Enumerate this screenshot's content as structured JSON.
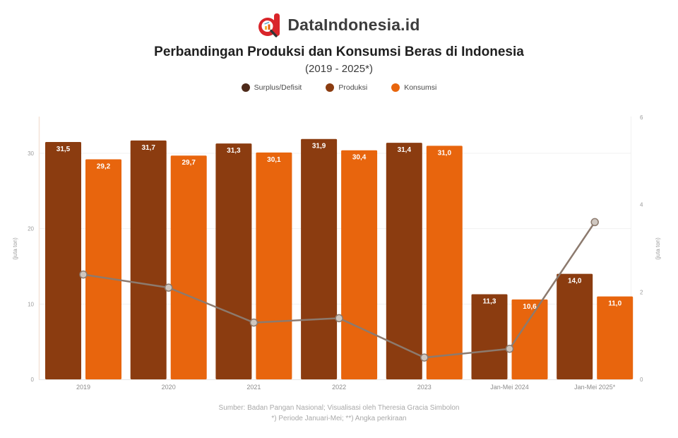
{
  "header": {
    "brand": "DataIndonesia.id",
    "title": "Perbandingan Produksi dan Konsumsi Beras di Indonesia",
    "subtitle": "(2019 - 2025*)"
  },
  "legend": [
    {
      "label": "Surplus/Defisit",
      "color": "#4e2a1a"
    },
    {
      "label": "Produksi",
      "color": "#8b3c10"
    },
    {
      "label": "Konsumsi",
      "color": "#e8650d"
    }
  ],
  "chart_data": {
    "type": "bar",
    "title": "Perbandingan Produksi dan Konsumsi Beras di Indonesia",
    "subtitle": "(2019 - 2025*)",
    "categories": [
      "2019",
      "2020",
      "2021",
      "2022",
      "2023",
      "Jan-Mei 2024",
      "Jan-Mei 2025*"
    ],
    "series": [
      {
        "name": "Produksi",
        "kind": "bar",
        "axis": "left",
        "color": "#8b3c10",
        "values": [
          31.5,
          31.7,
          31.3,
          31.9,
          31.4,
          11.3,
          14.0
        ],
        "labels": [
          "31,5",
          "31,7",
          "31,3",
          "31,9",
          "31,4",
          "11,3",
          "14,0"
        ]
      },
      {
        "name": "Konsumsi",
        "kind": "bar",
        "axis": "left",
        "color": "#e8650d",
        "values": [
          29.2,
          29.7,
          30.1,
          30.4,
          31.0,
          10.6,
          11.0
        ],
        "labels": [
          "29,2",
          "29,7",
          "30,1",
          "30,4",
          "31,0",
          "10,6",
          "11,0"
        ]
      },
      {
        "name": "Surplus/Defisit",
        "kind": "line",
        "axis": "right",
        "color": "#8c7a6e",
        "marker_fill": "#cfc7c0",
        "values": [
          2.4,
          2.1,
          1.3,
          1.4,
          0.5,
          0.7,
          3.6
        ]
      }
    ],
    "left_axis": {
      "title": "(juta ton)",
      "ticks": [
        0,
        10,
        20,
        30
      ],
      "max": 30
    },
    "right_axis": {
      "title": "(juta ton)",
      "ticks": [
        0,
        2,
        4,
        6
      ],
      "max": 6
    },
    "grid": "horizontal-faint",
    "legend_position": "top-center"
  },
  "footer": {
    "line1": "Sumber: Badan Pangan Nasional; Visualisasi oleh Theresia Gracia Simbolon",
    "line2": "*) Periode Januari-Mei; **) Angka perkiraan"
  }
}
